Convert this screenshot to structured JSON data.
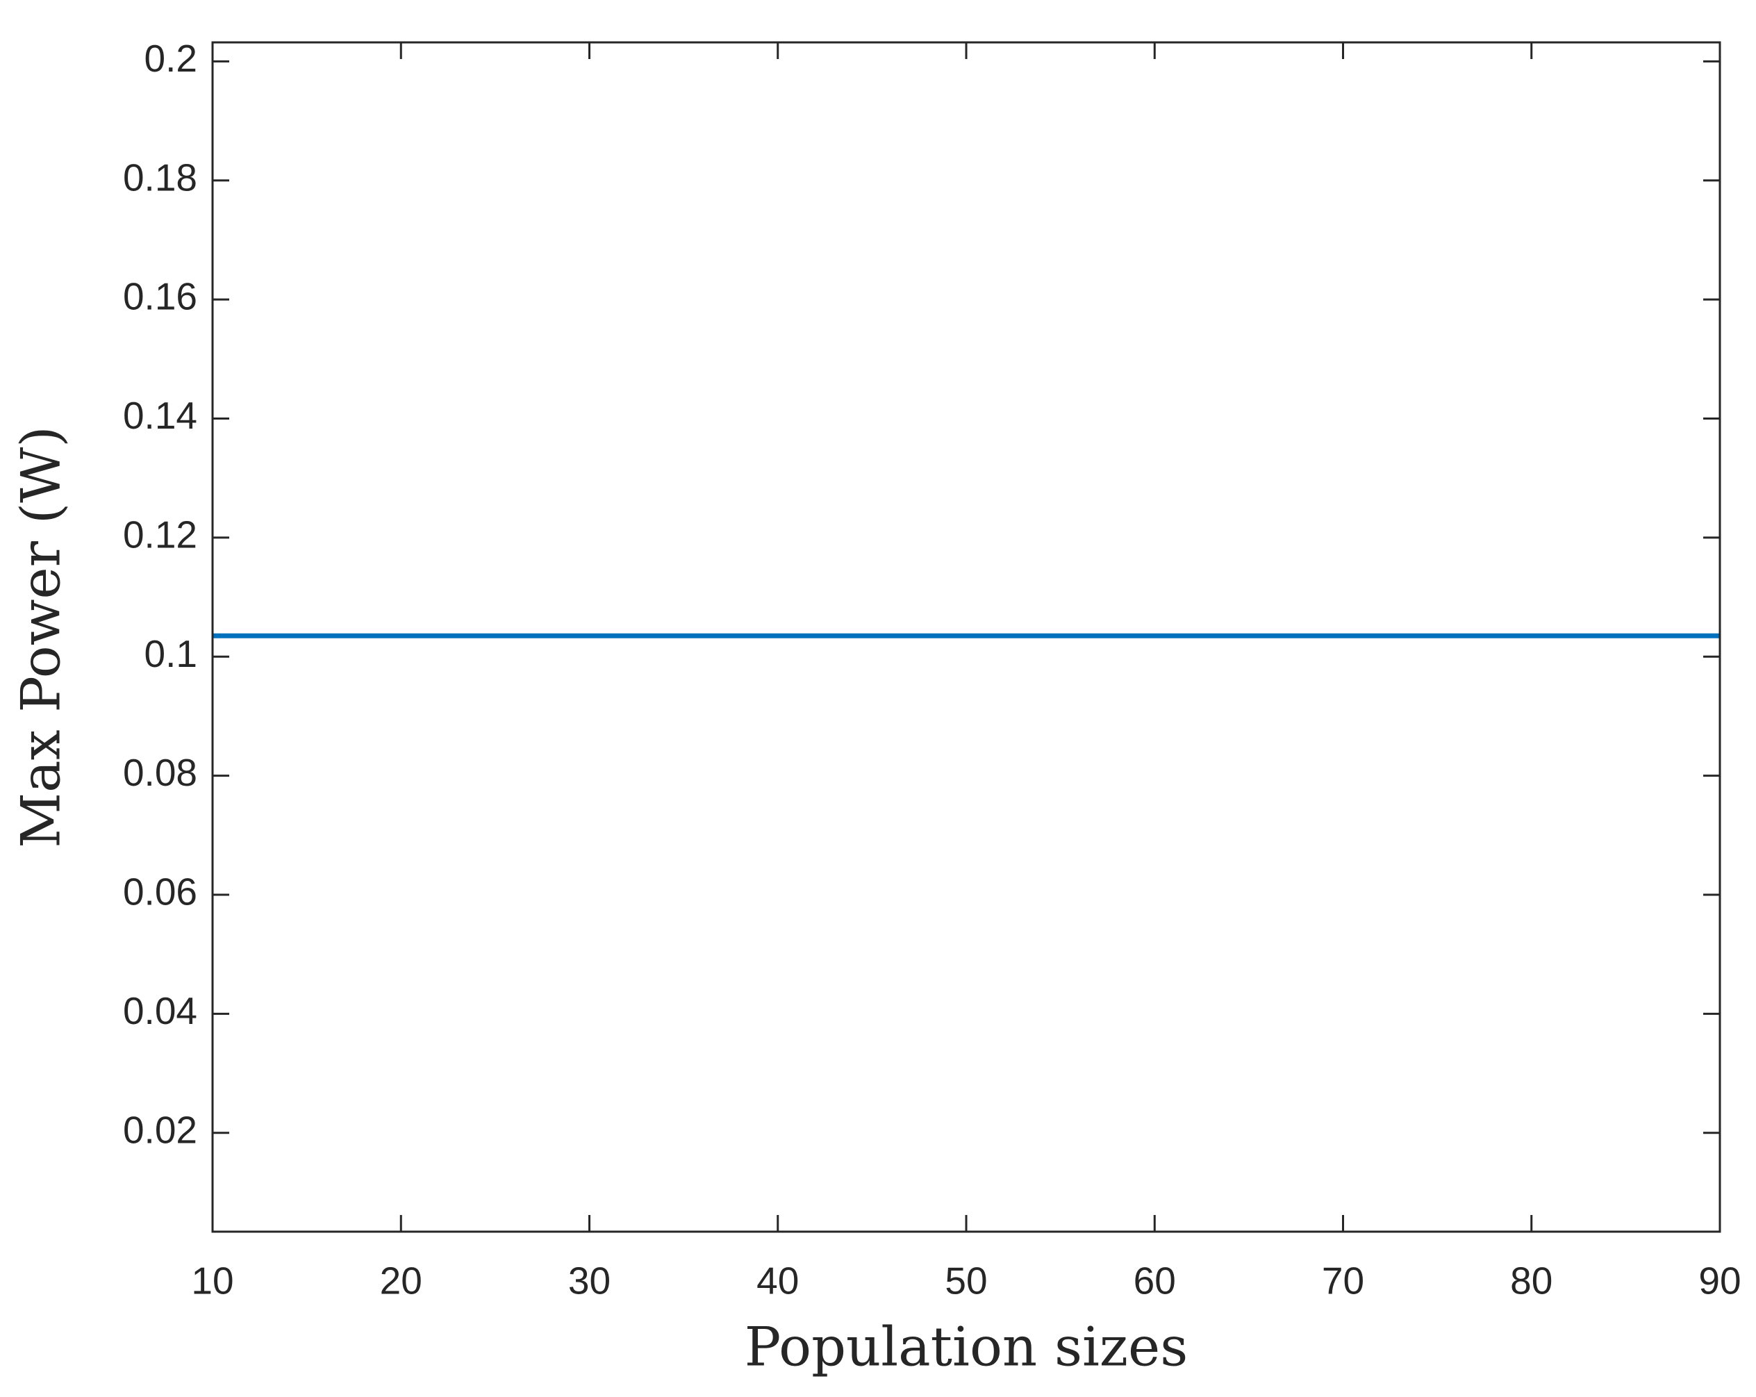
{
  "chart_data": {
    "type": "line",
    "x_label": "Population sizes",
    "y_label": "Max Power (W)",
    "x": [
      10,
      20,
      30,
      40,
      50,
      60,
      70,
      80,
      90
    ],
    "series": [
      {
        "color": "#0072bd",
        "values": [
          0.1035,
          0.1035,
          0.1035,
          0.1035,
          0.1035,
          0.1035,
          0.1035,
          0.1035,
          0.1035
        ]
      }
    ],
    "xlim": [
      10,
      90
    ],
    "xticks": [
      10,
      20,
      30,
      40,
      50,
      60,
      70,
      80,
      90
    ],
    "ylim": [
      0.0034,
      0.2032
    ],
    "yticks": [
      0.02,
      0.04,
      0.06,
      0.08,
      0.1,
      0.12,
      0.14,
      0.16,
      0.18,
      0.2
    ],
    "grid": false
  }
}
